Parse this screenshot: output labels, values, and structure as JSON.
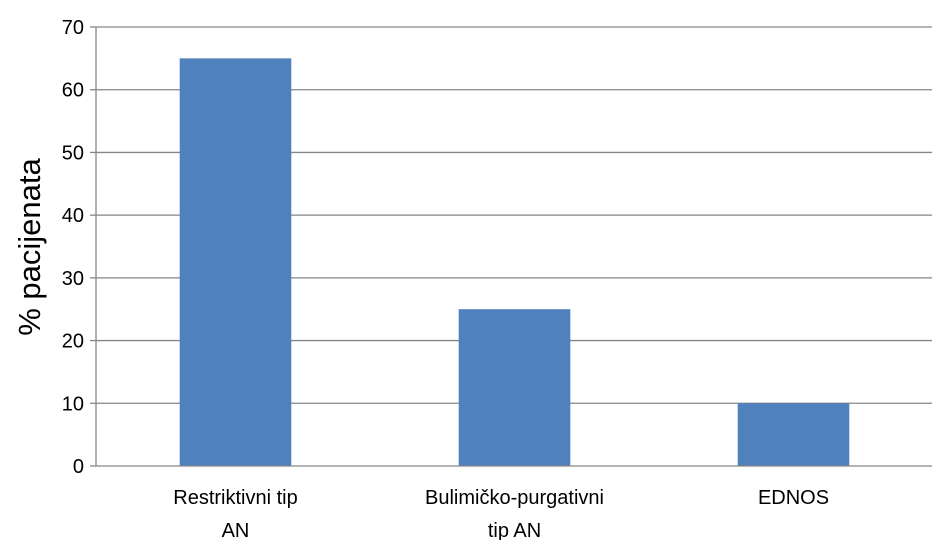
{
  "chart_data": {
    "type": "bar",
    "title": "",
    "xlabel": "",
    "ylabel": "% pacijenata",
    "ylim": [
      0,
      70
    ],
    "y_ticks": [
      0,
      10,
      20,
      30,
      40,
      50,
      60,
      70
    ],
    "categories": [
      [
        "Restriktivni tip",
        "AN"
      ],
      [
        "Bulimičko-purgativni",
        "tip AN"
      ],
      [
        "EDNOS"
      ]
    ],
    "values": [
      65,
      25,
      10
    ],
    "grid": "horizontal",
    "legend": "none",
    "bar_color": "#4F81BD",
    "grid_color": "#868686"
  }
}
